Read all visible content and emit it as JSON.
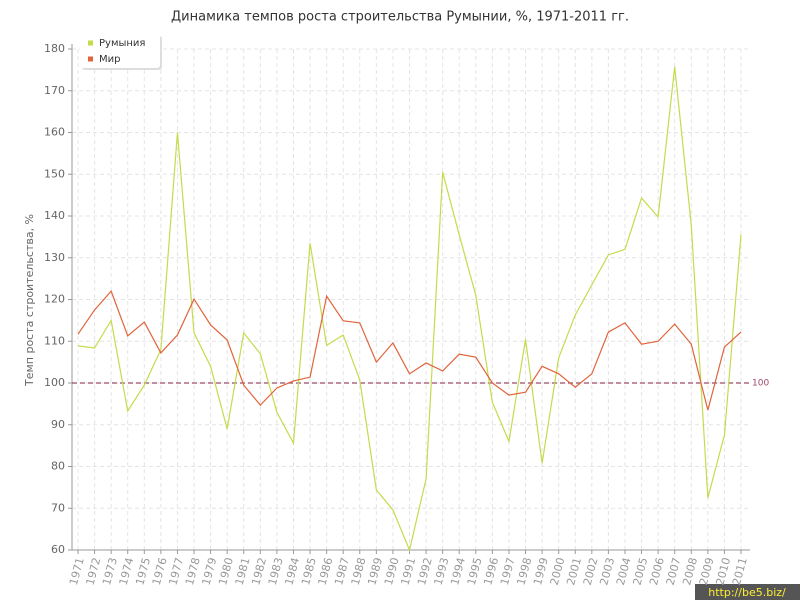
{
  "chart_data": {
    "type": "line",
    "title": "Динамика темпов роста строительства Румынии, %, 1971-2011 гг.",
    "y_label": "Темп роста строительства, %",
    "categories": [
      "1971",
      "1972",
      "1973",
      "1974",
      "1975",
      "1976",
      "1977",
      "1978",
      "1979",
      "1980",
      "1981",
      "1982",
      "1983",
      "1984",
      "1985",
      "1986",
      "1987",
      "1988",
      "1989",
      "1990",
      "1991",
      "1992",
      "1993",
      "1994",
      "1995",
      "1996",
      "1997",
      "1998",
      "1999",
      "2000",
      "2001",
      "2002",
      "2003",
      "2004",
      "2005",
      "2006",
      "2007",
      "2008",
      "2009",
      "2010",
      "2011"
    ],
    "series": [
      {
        "name": "Румыния",
        "color": "#c3dc4c",
        "values": [
          108.9,
          108.4,
          115,
          93.3,
          99.5,
          108,
          160,
          112,
          104,
          89,
          112,
          107,
          93,
          85.6,
          133.5,
          109,
          111.5,
          100.7,
          74.4,
          69.6,
          60,
          77,
          150.5,
          135.5,
          121,
          95.4,
          86,
          110.5,
          80.8,
          106,
          116.3,
          123.5,
          130.7,
          132,
          144.3,
          139.8,
          175.7,
          137.8,
          72.5,
          87.5,
          135.5
        ]
      },
      {
        "name": "Мир",
        "color": "#e0643c",
        "values": [
          111.7,
          117.5,
          122,
          111.3,
          114.6,
          107.2,
          111.5,
          120.1,
          113.9,
          110.3,
          99.5,
          94.7,
          98.8,
          100.5,
          101.4,
          120.8,
          114.9,
          114.4,
          105,
          109.6,
          102.2,
          104.8,
          102.9,
          106.9,
          106.2,
          100,
          97.1,
          97.8,
          104,
          102.2,
          99,
          102.2,
          112.2,
          114.4,
          109.3,
          110,
          114.1,
          109.3,
          93.5,
          108.6,
          112.2
        ]
      }
    ],
    "ylim": [
      60,
      180
    ],
    "yticks": [
      60,
      70,
      80,
      90,
      100,
      110,
      120,
      130,
      140,
      150,
      160,
      170,
      180
    ],
    "grid": true,
    "legend": "top-left",
    "reference_line": {
      "value": 100,
      "color": "#9b4a6a"
    },
    "watermark": "http://be5.biz/"
  }
}
